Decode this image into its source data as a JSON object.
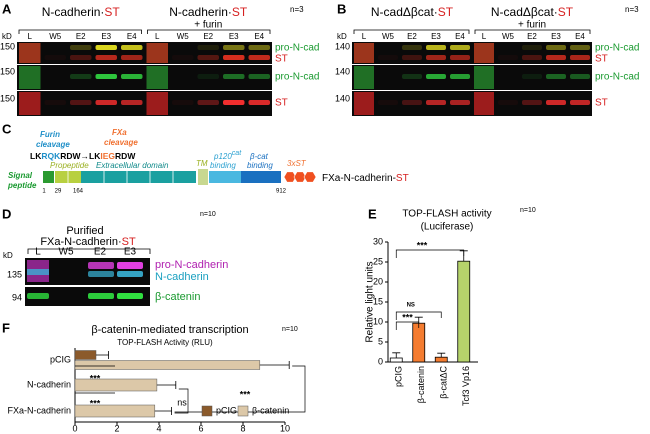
{
  "panel_a": {
    "label": "A",
    "group1": {
      "name": "N-cadherin·",
      "tag": "ST"
    },
    "group2": {
      "name": "N-cadherin·",
      "tag": "ST",
      "treatment": "+ furin"
    },
    "n": "n=3",
    "unit": "kD",
    "lanes": [
      "L",
      "W5",
      "E2",
      "E3",
      "E4",
      "L",
      "W5",
      "E2",
      "E3",
      "E4"
    ],
    "markers": [
      "150",
      "150",
      "150"
    ],
    "bands": [
      "pro-N-cad",
      "ST",
      "pro-N-cad",
      "ST"
    ]
  },
  "panel_b": {
    "label": "B",
    "group1": {
      "name": "N-cadΔβcat·",
      "tag": "ST"
    },
    "group2": {
      "name": "N-cadΔβcat·",
      "tag": "ST",
      "treatment": "+ furin"
    },
    "n": "n=3",
    "unit": "kD",
    "lanes": [
      "L",
      "W5",
      "E2",
      "E3",
      "E4",
      "L",
      "W5",
      "E2",
      "E3",
      "E4"
    ],
    "markers": [
      "140",
      "140",
      "140"
    ],
    "bands": [
      "pro-N-cad",
      "ST",
      "pro-N-cad",
      "ST"
    ]
  },
  "panel_c": {
    "label": "C",
    "furin": [
      "Furin",
      "cleavage"
    ],
    "fxa": [
      "FXa",
      "cleavage"
    ],
    "sequence": [
      "LK",
      "RQK",
      "RDW",
      "→LK",
      "IEG",
      "RDW"
    ],
    "signal": [
      "Signal",
      "peptide"
    ],
    "propeptide": "Propeptide",
    "extracellular": "Extracellular domain",
    "tm": "TM",
    "p120": [
      "p120",
      "cat",
      "binding"
    ],
    "bcat": [
      "β-cat",
      "binding"
    ],
    "tag": "3xST",
    "positions": [
      "1",
      "29",
      "164",
      "912"
    ],
    "construct": {
      "name": "FXa-N-cadherin-",
      "tag": "ST"
    }
  },
  "panel_d": {
    "label": "D",
    "n": "n=10",
    "title": [
      "Purified",
      "FXa-N-cadherin·"
    ],
    "tag": "ST",
    "unit": "kD",
    "lanes": [
      "L",
      "W5",
      "E2",
      "E3"
    ],
    "markers": [
      "135",
      "94"
    ],
    "bands": [
      "pro-N-cadherin",
      "N-cadherin",
      "β-catenin"
    ]
  },
  "chart_data": [
    {
      "type": "bar",
      "label": "E",
      "title": "TOP-FLASH activity",
      "subtitle": "(Luciferase)",
      "n": "n=10",
      "y_label": "Relative light units",
      "categories": [
        "pCIG",
        "β-catenin",
        "β-catΔC",
        "Tcf3 Vp16"
      ],
      "values": [
        1.0,
        9.7,
        1.2,
        25.2
      ],
      "errors": [
        1.3,
        1.5,
        1.0,
        2.6
      ],
      "colors": [
        "#ffffff",
        "#f47c30",
        "#f47c30",
        "#b6d36b"
      ],
      "ylim": [
        0,
        30
      ],
      "yticks": [
        0,
        5,
        10,
        15,
        20,
        25,
        30
      ],
      "annotations": [
        "***",
        "NS",
        "***"
      ]
    },
    {
      "type": "hbar",
      "label": "F",
      "title": "β-catenin-mediated transcription",
      "subtitle": "TOP-FLASH  Activity (RLU)",
      "n": "n=10",
      "categories": [
        "pCIG",
        "N-cadherin",
        "FXa-N-cadherin"
      ],
      "series": [
        {
          "name": "pCIG",
          "color": "#8b5a2b",
          "values": [
            1.0,
            null,
            null
          ],
          "errors": [
            0.6,
            null,
            null
          ]
        },
        {
          "name": "β-catenin",
          "color": "#dcc8a8",
          "values": [
            8.8,
            3.9,
            3.8
          ],
          "errors": [
            1.4,
            0.9,
            0.8
          ]
        }
      ],
      "xlim": [
        0,
        10
      ],
      "xticks": [
        0,
        2,
        4,
        6,
        8,
        10
      ],
      "annotations": [
        "***",
        "***",
        "***",
        "ns"
      ]
    }
  ]
}
